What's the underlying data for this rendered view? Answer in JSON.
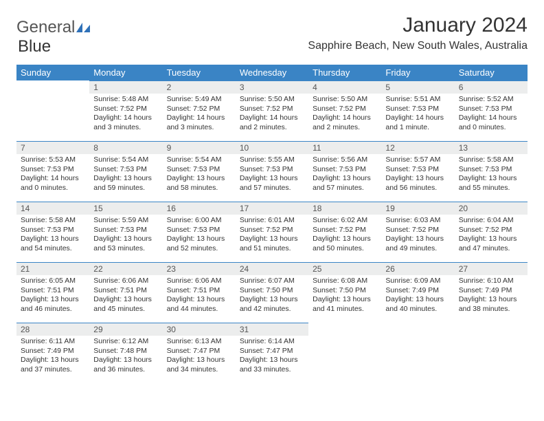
{
  "brand": {
    "part1": "General",
    "part2": "Blue"
  },
  "title": "January 2024",
  "subtitle": "Sapphire Beach, New South Wales, Australia",
  "colors": {
    "header_bg": "#3a84c5",
    "header_text": "#ffffff",
    "daynum_bg": "#eceded",
    "row_border": "#3a84c5",
    "logo_blue": "#2f71b8",
    "logo_gray": "#555555",
    "page_bg": "#ffffff",
    "body_text": "#333333"
  },
  "font": {
    "family": "Arial",
    "title_size_pt": 22,
    "subtitle_size_pt": 12,
    "header_size_pt": 10,
    "cell_size_pt": 8
  },
  "days_of_week": [
    "Sunday",
    "Monday",
    "Tuesday",
    "Wednesday",
    "Thursday",
    "Friday",
    "Saturday"
  ],
  "weeks": [
    [
      {
        "n": "",
        "empty": true
      },
      {
        "n": "1",
        "sunrise": "5:48 AM",
        "sunset": "7:52 PM",
        "daylight": "14 hours and 3 minutes."
      },
      {
        "n": "2",
        "sunrise": "5:49 AM",
        "sunset": "7:52 PM",
        "daylight": "14 hours and 3 minutes."
      },
      {
        "n": "3",
        "sunrise": "5:50 AM",
        "sunset": "7:52 PM",
        "daylight": "14 hours and 2 minutes."
      },
      {
        "n": "4",
        "sunrise": "5:50 AM",
        "sunset": "7:52 PM",
        "daylight": "14 hours and 2 minutes."
      },
      {
        "n": "5",
        "sunrise": "5:51 AM",
        "sunset": "7:53 PM",
        "daylight": "14 hours and 1 minute."
      },
      {
        "n": "6",
        "sunrise": "5:52 AM",
        "sunset": "7:53 PM",
        "daylight": "14 hours and 0 minutes."
      }
    ],
    [
      {
        "n": "7",
        "sunrise": "5:53 AM",
        "sunset": "7:53 PM",
        "daylight": "14 hours and 0 minutes."
      },
      {
        "n": "8",
        "sunrise": "5:54 AM",
        "sunset": "7:53 PM",
        "daylight": "13 hours and 59 minutes."
      },
      {
        "n": "9",
        "sunrise": "5:54 AM",
        "sunset": "7:53 PM",
        "daylight": "13 hours and 58 minutes."
      },
      {
        "n": "10",
        "sunrise": "5:55 AM",
        "sunset": "7:53 PM",
        "daylight": "13 hours and 57 minutes."
      },
      {
        "n": "11",
        "sunrise": "5:56 AM",
        "sunset": "7:53 PM",
        "daylight": "13 hours and 57 minutes."
      },
      {
        "n": "12",
        "sunrise": "5:57 AM",
        "sunset": "7:53 PM",
        "daylight": "13 hours and 56 minutes."
      },
      {
        "n": "13",
        "sunrise": "5:58 AM",
        "sunset": "7:53 PM",
        "daylight": "13 hours and 55 minutes."
      }
    ],
    [
      {
        "n": "14",
        "sunrise": "5:58 AM",
        "sunset": "7:53 PM",
        "daylight": "13 hours and 54 minutes."
      },
      {
        "n": "15",
        "sunrise": "5:59 AM",
        "sunset": "7:53 PM",
        "daylight": "13 hours and 53 minutes."
      },
      {
        "n": "16",
        "sunrise": "6:00 AM",
        "sunset": "7:53 PM",
        "daylight": "13 hours and 52 minutes."
      },
      {
        "n": "17",
        "sunrise": "6:01 AM",
        "sunset": "7:52 PM",
        "daylight": "13 hours and 51 minutes."
      },
      {
        "n": "18",
        "sunrise": "6:02 AM",
        "sunset": "7:52 PM",
        "daylight": "13 hours and 50 minutes."
      },
      {
        "n": "19",
        "sunrise": "6:03 AM",
        "sunset": "7:52 PM",
        "daylight": "13 hours and 49 minutes."
      },
      {
        "n": "20",
        "sunrise": "6:04 AM",
        "sunset": "7:52 PM",
        "daylight": "13 hours and 47 minutes."
      }
    ],
    [
      {
        "n": "21",
        "sunrise": "6:05 AM",
        "sunset": "7:51 PM",
        "daylight": "13 hours and 46 minutes."
      },
      {
        "n": "22",
        "sunrise": "6:06 AM",
        "sunset": "7:51 PM",
        "daylight": "13 hours and 45 minutes."
      },
      {
        "n": "23",
        "sunrise": "6:06 AM",
        "sunset": "7:51 PM",
        "daylight": "13 hours and 44 minutes."
      },
      {
        "n": "24",
        "sunrise": "6:07 AM",
        "sunset": "7:50 PM",
        "daylight": "13 hours and 42 minutes."
      },
      {
        "n": "25",
        "sunrise": "6:08 AM",
        "sunset": "7:50 PM",
        "daylight": "13 hours and 41 minutes."
      },
      {
        "n": "26",
        "sunrise": "6:09 AM",
        "sunset": "7:49 PM",
        "daylight": "13 hours and 40 minutes."
      },
      {
        "n": "27",
        "sunrise": "6:10 AM",
        "sunset": "7:49 PM",
        "daylight": "13 hours and 38 minutes."
      }
    ],
    [
      {
        "n": "28",
        "sunrise": "6:11 AM",
        "sunset": "7:49 PM",
        "daylight": "13 hours and 37 minutes."
      },
      {
        "n": "29",
        "sunrise": "6:12 AM",
        "sunset": "7:48 PM",
        "daylight": "13 hours and 36 minutes."
      },
      {
        "n": "30",
        "sunrise": "6:13 AM",
        "sunset": "7:47 PM",
        "daylight": "13 hours and 34 minutes."
      },
      {
        "n": "31",
        "sunrise": "6:14 AM",
        "sunset": "7:47 PM",
        "daylight": "13 hours and 33 minutes."
      },
      {
        "n": "",
        "empty": true
      },
      {
        "n": "",
        "empty": true
      },
      {
        "n": "",
        "empty": true
      }
    ]
  ],
  "labels": {
    "sunrise": "Sunrise:",
    "sunset": "Sunset:",
    "daylight": "Daylight:"
  }
}
